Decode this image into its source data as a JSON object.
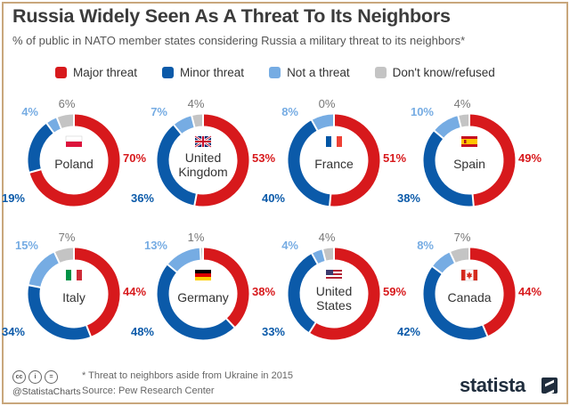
{
  "header": {
    "title": "Russia Widely Seen As A Threat To Its Neighbors",
    "subtitle": "% of public in NATO member states considering Russia a military threat to its neighbors*"
  },
  "legend": [
    {
      "label": "Major threat",
      "color": "#d7191c"
    },
    {
      "label": "Minor threat",
      "color": "#0b5aa9"
    },
    {
      "label": "Not a threat",
      "color": "#76ace3"
    },
    {
      "label": "Don't know/refused",
      "color": "#c4c4c4"
    }
  ],
  "chart_data": {
    "type": "pie",
    "series_names": [
      "Major threat",
      "Minor threat",
      "Not a threat",
      "Don't know/refused"
    ],
    "colors": [
      "#d7191c",
      "#0b5aa9",
      "#76ace3",
      "#c4c4c4"
    ],
    "charts": [
      {
        "country": "Poland",
        "flag": "poland-flag-icon",
        "values": [
          70,
          19,
          4,
          6
        ],
        "labels": [
          "70%",
          "19%",
          "4%",
          "6%"
        ]
      },
      {
        "country": "United Kingdom",
        "flag": "uk-flag-icon",
        "values": [
          53,
          36,
          7,
          4
        ],
        "labels": [
          "53%",
          "36%",
          "7%",
          "4%"
        ]
      },
      {
        "country": "France",
        "flag": "france-flag-icon",
        "values": [
          51,
          40,
          8,
          0
        ],
        "labels": [
          "51%",
          "40%",
          "8%",
          "0%"
        ]
      },
      {
        "country": "Spain",
        "flag": "spain-flag-icon",
        "values": [
          49,
          38,
          10,
          4
        ],
        "labels": [
          "49%",
          "38%",
          "10%",
          "4%"
        ]
      },
      {
        "country": "Italy",
        "flag": "italy-flag-icon",
        "values": [
          44,
          34,
          15,
          7
        ],
        "labels": [
          "44%",
          "34%",
          "15%",
          "7%"
        ]
      },
      {
        "country": "Germany",
        "flag": "germany-flag-icon",
        "values": [
          38,
          48,
          13,
          1
        ],
        "labels": [
          "38%",
          "48%",
          "13%",
          "1%"
        ]
      },
      {
        "country": "United States",
        "flag": "usa-flag-icon",
        "values": [
          59,
          33,
          4,
          4
        ],
        "labels": [
          "59%",
          "33%",
          "4%",
          "4%"
        ]
      },
      {
        "country": "Canada",
        "flag": "canada-flag-icon",
        "values": [
          44,
          42,
          8,
          7
        ],
        "labels": [
          "44%",
          "42%",
          "8%",
          "7%"
        ]
      }
    ]
  },
  "footer": {
    "handle": "@StatistaCharts",
    "note": "* Threat to neighbors aside from Ukraine in 2015",
    "source": "Source: Pew Research Center",
    "brand": "statista",
    "cc_icons": [
      "cc",
      "i",
      "="
    ]
  }
}
